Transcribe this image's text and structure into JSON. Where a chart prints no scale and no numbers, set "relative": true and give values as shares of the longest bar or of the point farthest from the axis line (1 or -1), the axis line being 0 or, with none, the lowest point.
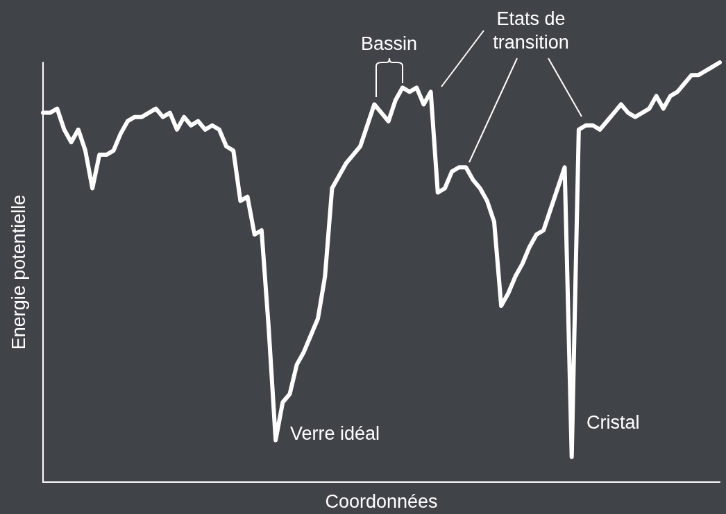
{
  "chart_data": {
    "type": "line",
    "relative": true,
    "xlabel": "Coordonnées",
    "ylabel": "Energie potentielle",
    "color": "#ffffff",
    "marker": "none",
    "grid": false,
    "categories": [
      null,
      null,
      null,
      null,
      null,
      null,
      null,
      null,
      null,
      null,
      null,
      null,
      null,
      null,
      null,
      null,
      null,
      null,
      null,
      null,
      null,
      null,
      null,
      null,
      null,
      null,
      null,
      null,
      null,
      null,
      null,
      null,
      null,
      null,
      null,
      null,
      null,
      null,
      null,
      null,
      null,
      null,
      null,
      null,
      null,
      null,
      null,
      null,
      null,
      null,
      null,
      null,
      null,
      null,
      null,
      null,
      null,
      null,
      null,
      null,
      null,
      null,
      null,
      null,
      null,
      null,
      null,
      null,
      null,
      null,
      null,
      null,
      null,
      null,
      null,
      null,
      null,
      null,
      null,
      null,
      null,
      null,
      null,
      null,
      null,
      null,
      null,
      null,
      null,
      null,
      null,
      null,
      null,
      null,
      null,
      null,
      null
    ],
    "values": [
      0.88,
      0.88,
      0.89,
      0.84,
      0.81,
      0.84,
      0.79,
      0.7,
      0.78,
      0.78,
      0.79,
      0.83,
      0.86,
      0.87,
      0.87,
      0.88,
      0.89,
      0.87,
      0.88,
      0.84,
      0.87,
      0.85,
      0.86,
      0.84,
      0.85,
      0.84,
      0.8,
      0.79,
      0.67,
      0.68,
      0.59,
      0.6,
      0.37,
      0.1,
      0.19,
      0.21,
      0.28,
      0.31,
      0.35,
      0.39,
      0.49,
      0.7,
      0.73,
      0.76,
      0.78,
      0.8,
      0.85,
      0.9,
      0.88,
      0.86,
      0.91,
      0.94,
      0.93,
      0.94,
      0.9,
      0.93,
      0.69,
      0.7,
      0.74,
      0.75,
      0.75,
      0.72,
      0.7,
      0.67,
      0.62,
      0.42,
      0.45,
      0.49,
      0.52,
      0.56,
      0.59,
      0.6,
      0.65,
      0.7,
      0.75,
      0.06,
      0.84,
      0.85,
      0.85,
      0.84,
      0.86,
      0.88,
      0.9,
      0.88,
      0.87,
      0.88,
      0.89,
      0.92,
      0.89,
      0.92,
      0.93,
      0.95,
      0.97,
      0.97,
      0.98,
      0.99,
      1
    ],
    "annotations": [
      "Bassin",
      "Etats de\ntransition",
      "Verre idéal",
      "Cristal"
    ]
  }
}
